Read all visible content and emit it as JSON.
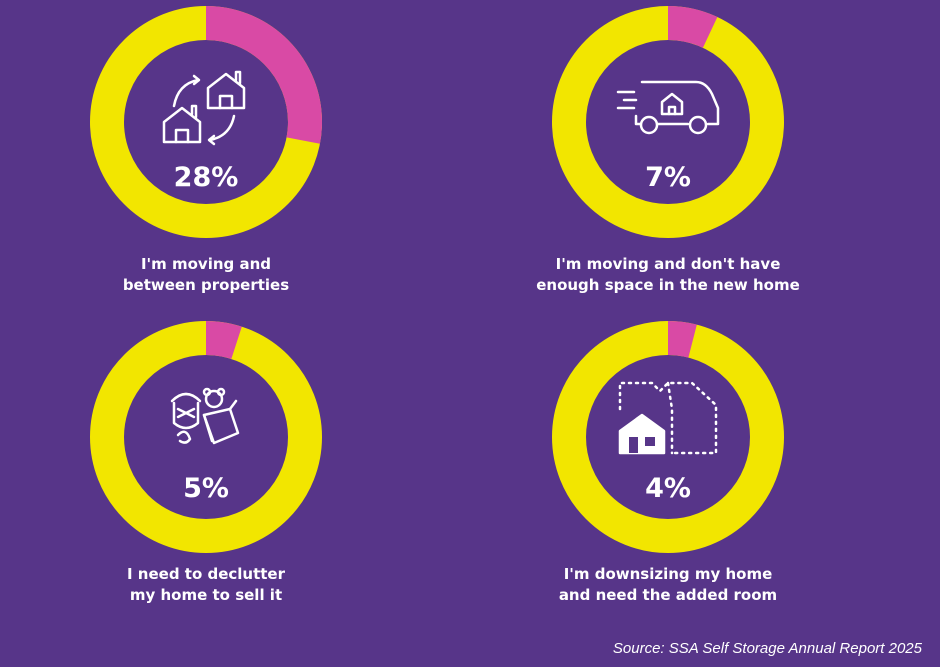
{
  "chart_data": {
    "type": "pie",
    "charts": [
      {
        "value": 28,
        "label": "28%",
        "caption": [
          "I'm moving and",
          "between properties"
        ],
        "icon": "house-swap-icon"
      },
      {
        "value": 7,
        "label": "7%",
        "caption": [
          "I'm moving and don't have",
          "enough space in the new home"
        ],
        "icon": "moving-van-icon"
      },
      {
        "value": 5,
        "label": "5%",
        "caption": [
          "I need to declutter",
          "my home to sell it"
        ],
        "icon": "toys-box-icon"
      },
      {
        "value": 4,
        "label": "4%",
        "caption": [
          "I'm downsizing my home",
          "and need the added room"
        ],
        "icon": "house-extension-icon"
      }
    ],
    "colors": {
      "highlight": "#d94aa5",
      "remainder": "#f2e600",
      "background": "#573589"
    }
  },
  "source": "Source: SSA Self Storage Annual Report 2025"
}
